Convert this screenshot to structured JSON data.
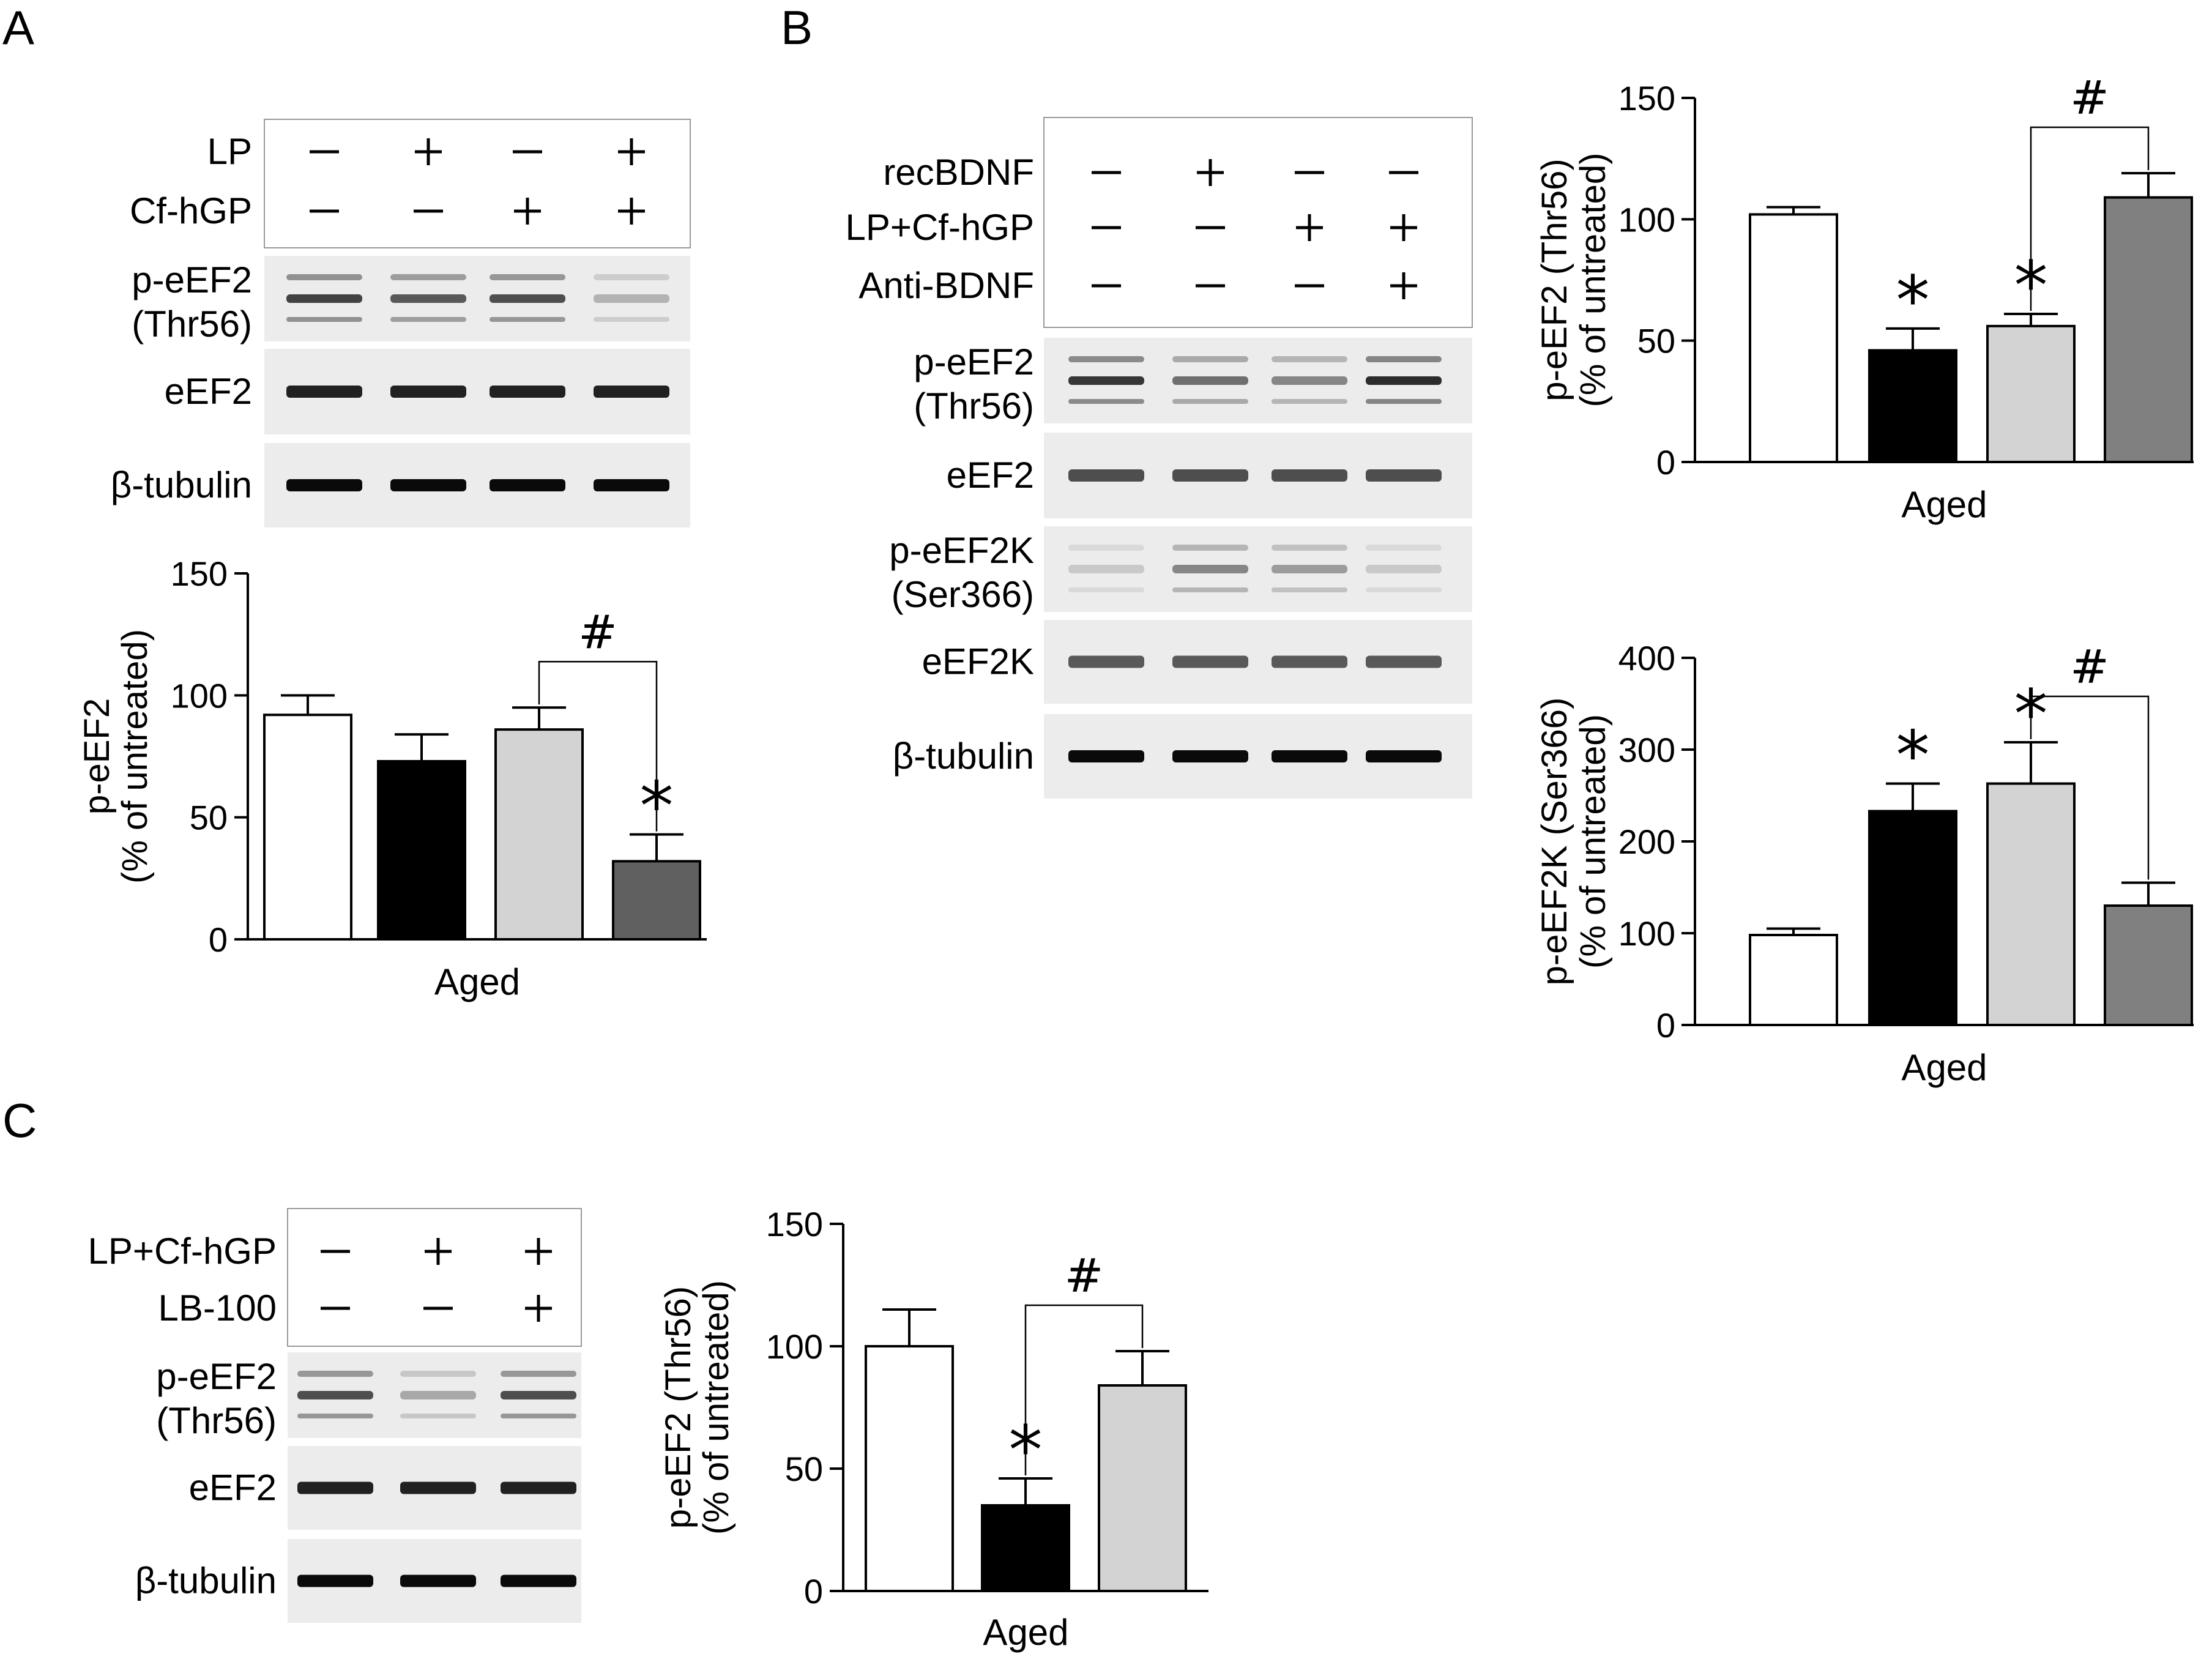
{
  "panels": [
    {
      "letter": "A",
      "treatments": [
        {
          "label": "LP",
          "signs": [
            "−",
            "+",
            "−",
            "+"
          ]
        },
        {
          "label": "Cf-hGP",
          "signs": [
            "−",
            "−",
            "+",
            "+"
          ]
        }
      ],
      "blots": [
        {
          "label_lines": [
            "p-eEF2",
            "(Thr56)"
          ],
          "intensity": [
            0.75,
            0.65,
            0.7,
            0.25
          ]
        },
        {
          "label_lines": [
            "eEF2"
          ],
          "intensity": [
            0.9,
            0.9,
            0.9,
            0.9
          ]
        },
        {
          "label_lines": [
            "β-tubulin"
          ],
          "intensity": [
            1.0,
            1.0,
            1.0,
            1.0
          ]
        }
      ]
    },
    {
      "letter": "B",
      "treatments": [
        {
          "label": "recBDNF",
          "signs": [
            "−",
            "+",
            "−",
            "−"
          ]
        },
        {
          "label": "LP+Cf-hGP",
          "signs": [
            "−",
            "−",
            "+",
            "+"
          ]
        },
        {
          "label": "Anti-BDNF",
          "signs": [
            "−",
            "−",
            "−",
            "+"
          ]
        }
      ],
      "blots": [
        {
          "label_lines": [
            "p-eEF2",
            "(Thr56)"
          ],
          "intensity": [
            0.8,
            0.55,
            0.45,
            0.85
          ]
        },
        {
          "label_lines": [
            "eEF2"
          ],
          "intensity": [
            0.7,
            0.7,
            0.7,
            0.7
          ]
        },
        {
          "label_lines": [
            "p-eEF2K",
            "(Ser366)"
          ],
          "intensity": [
            0.15,
            0.45,
            0.35,
            0.15
          ]
        },
        {
          "label_lines": [
            "eEF2K"
          ],
          "intensity": [
            0.65,
            0.65,
            0.65,
            0.65
          ]
        },
        {
          "label_lines": [
            "β-tubulin"
          ],
          "intensity": [
            1.0,
            1.0,
            1.0,
            1.0
          ]
        }
      ]
    },
    {
      "letter": "C",
      "treatments": [
        {
          "label": "LP+Cf-hGP",
          "signs": [
            "−",
            "+",
            "+"
          ]
        },
        {
          "label": "LB-100",
          "signs": [
            "−",
            "−",
            "+"
          ]
        }
      ],
      "blots": [
        {
          "label_lines": [
            "p-eEF2",
            "(Thr56)"
          ],
          "intensity": [
            0.7,
            0.3,
            0.7
          ]
        },
        {
          "label_lines": [
            "eEF2"
          ],
          "intensity": [
            0.9,
            0.9,
            0.9
          ]
        },
        {
          "label_lines": [
            "β-tubulin"
          ],
          "intensity": [
            1.0,
            1.0,
            1.0
          ]
        }
      ]
    }
  ],
  "chart_data": [
    {
      "id": "A",
      "type": "bar",
      "title": "",
      "ylabel_lines": [
        "p-eEF2",
        "(% of untreated)"
      ],
      "xlabel": "Aged",
      "ylim": [
        0,
        150
      ],
      "yticks": [
        "0",
        "50",
        "100",
        "150"
      ],
      "values": [
        92,
        73,
        86,
        32
      ],
      "errors": [
        8,
        11,
        9,
        11
      ],
      "colors": [
        "#ffffff",
        "#000000",
        "#d3d3d3",
        "#606060"
      ],
      "stars": [
        false,
        false,
        false,
        true
      ],
      "star_symbol": "*",
      "bracket": {
        "from": 2,
        "to": 3,
        "symbol": "#"
      }
    },
    {
      "id": "B1",
      "type": "bar",
      "title": "",
      "ylabel_lines": [
        "p-eEF2 (Thr56)",
        "(% of untreated)"
      ],
      "xlabel": "Aged",
      "ylim": [
        0,
        150
      ],
      "yticks": [
        "0",
        "50",
        "100",
        "150"
      ],
      "values": [
        102,
        46,
        56,
        109
      ],
      "errors": [
        3,
        9,
        5,
        10
      ],
      "colors": [
        "#ffffff",
        "#000000",
        "#d3d3d3",
        "#808080"
      ],
      "stars": [
        false,
        true,
        true,
        false
      ],
      "star_symbol": "*",
      "bracket": {
        "from": 2,
        "to": 3,
        "symbol": "#"
      }
    },
    {
      "id": "B2",
      "type": "bar",
      "title": "",
      "ylabel_lines": [
        "p-eEF2K (Ser366)",
        "(% of untreated)"
      ],
      "xlabel": "Aged",
      "ylim": [
        0,
        400
      ],
      "yticks": [
        "0",
        "100",
        "200",
        "300",
        "400"
      ],
      "values": [
        98,
        233,
        263,
        130
      ],
      "errors": [
        7,
        30,
        45,
        25
      ],
      "colors": [
        "#ffffff",
        "#000000",
        "#d3d3d3",
        "#808080"
      ],
      "stars": [
        false,
        true,
        true,
        false
      ],
      "star_symbol": "*",
      "bracket": {
        "from": 2,
        "to": 3,
        "symbol": "#"
      }
    },
    {
      "id": "C",
      "type": "bar",
      "title": "",
      "ylabel_lines": [
        "p-eEF2 (Thr56)",
        "(% of untreated)"
      ],
      "xlabel": "Aged",
      "ylim": [
        0,
        150
      ],
      "yticks": [
        "0",
        "50",
        "100",
        "150"
      ],
      "values": [
        100,
        35,
        84
      ],
      "errors": [
        15,
        11,
        14
      ],
      "colors": [
        "#ffffff",
        "#000000",
        "#d3d3d3"
      ],
      "stars": [
        false,
        true,
        false
      ],
      "star_symbol": "*",
      "bracket": {
        "from": 1,
        "to": 2,
        "symbol": "#"
      }
    }
  ]
}
